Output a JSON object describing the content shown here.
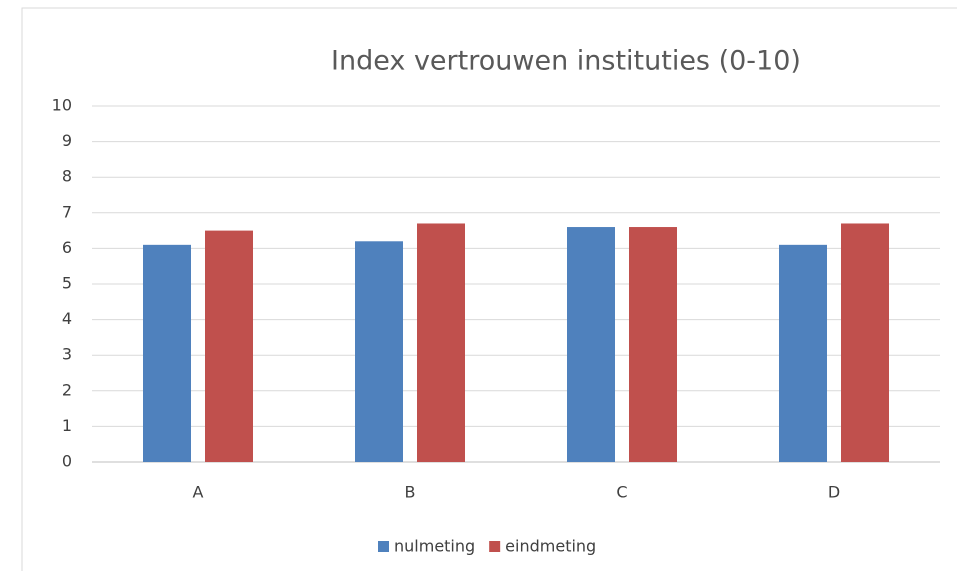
{
  "chart_data": {
    "type": "bar",
    "title": "Index vertrouwen instituties (0-10)",
    "categories": [
      "A",
      "B",
      "C",
      "D"
    ],
    "series": [
      {
        "name": "nulmeting",
        "color": "#4f81bd",
        "values": [
          6.1,
          6.2,
          6.6,
          6.1
        ]
      },
      {
        "name": "eindmeting",
        "color": "#c0504d",
        "values": [
          6.5,
          6.7,
          6.6,
          6.7
        ]
      }
    ],
    "ylim": [
      0,
      10
    ],
    "yticks": [
      0,
      1,
      2,
      3,
      4,
      5,
      6,
      7,
      8,
      9,
      10
    ],
    "grid": true,
    "legend": "bottom"
  }
}
